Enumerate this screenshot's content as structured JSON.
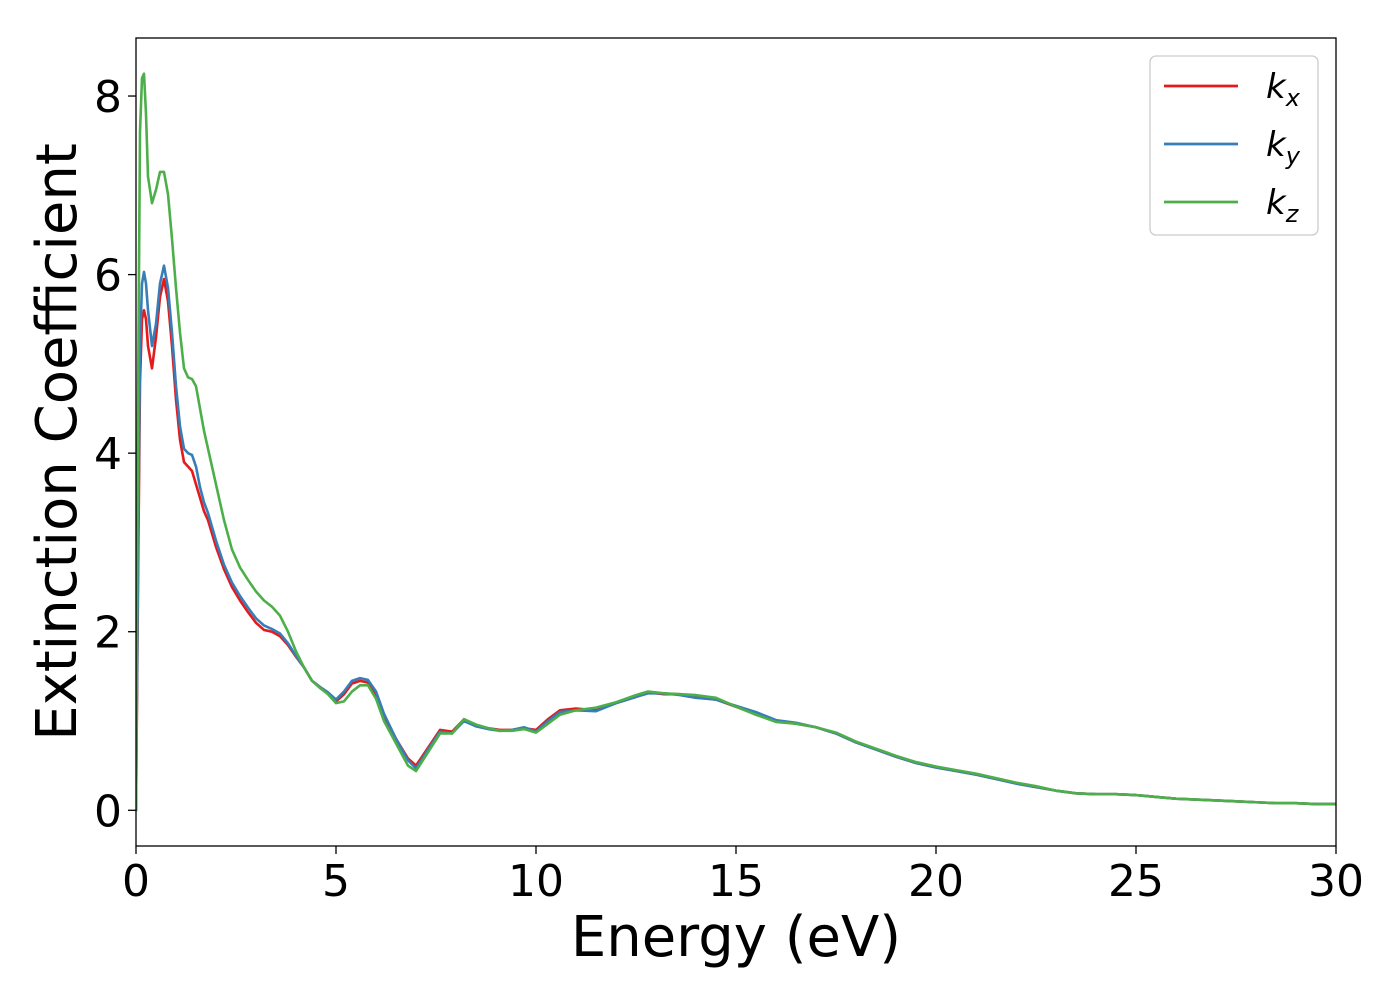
{
  "chart_data": {
    "type": "line",
    "title": "",
    "xlabel": "Energy (eV)",
    "ylabel": "Extinction Coefficient",
    "xlim": [
      0,
      30
    ],
    "ylim": [
      -0.4,
      8.65
    ],
    "xticks": [
      0,
      5,
      10,
      15,
      20,
      25,
      30
    ],
    "yticks": [
      0,
      2,
      4,
      6,
      8
    ],
    "grid": false,
    "legend_position": "top-right",
    "colors": {
      "kx": "#e41a1c",
      "ky": "#377eb8",
      "kz": "#4daf4a"
    },
    "series": [
      {
        "name": "k_x",
        "symbol": "k",
        "subscript": "x",
        "color": "#e41a1c",
        "x": [
          0,
          0.05,
          0.1,
          0.15,
          0.2,
          0.25,
          0.3,
          0.4,
          0.5,
          0.6,
          0.7,
          0.8,
          0.9,
          1.0,
          1.1,
          1.2,
          1.3,
          1.4,
          1.5,
          1.6,
          1.7,
          1.8,
          2.0,
          2.2,
          2.4,
          2.6,
          2.8,
          3.0,
          3.2,
          3.4,
          3.6,
          3.8,
          4.0,
          4.2,
          4.4,
          4.6,
          4.8,
          5.0,
          5.2,
          5.4,
          5.6,
          5.8,
          6.0,
          6.2,
          6.5,
          6.8,
          7.0,
          7.3,
          7.6,
          7.9,
          8.2,
          8.5,
          8.8,
          9.1,
          9.4,
          9.7,
          10.0,
          10.3,
          10.6,
          11.0,
          11.5,
          12.0,
          12.5,
          12.8,
          13.2,
          13.6,
          14.0,
          14.5,
          15.0,
          15.5,
          16.0,
          16.5,
          17.0,
          17.5,
          18.0,
          18.5,
          19.0,
          19.5,
          20.0,
          20.5,
          21.0,
          21.5,
          22.0,
          22.5,
          23.0,
          23.5,
          24.0,
          24.5,
          25.0,
          25.5,
          26.0,
          26.5,
          27.0,
          27.5,
          28.0,
          28.5,
          29.0,
          29.5,
          30.0
        ],
        "y": [
          0,
          2.5,
          4.8,
          5.5,
          5.6,
          5.5,
          5.2,
          4.95,
          5.3,
          5.75,
          5.95,
          5.7,
          5.2,
          4.6,
          4.15,
          3.9,
          3.85,
          3.8,
          3.65,
          3.5,
          3.35,
          3.25,
          2.95,
          2.7,
          2.5,
          2.35,
          2.22,
          2.1,
          2.02,
          2.0,
          1.95,
          1.85,
          1.72,
          1.6,
          1.45,
          1.38,
          1.32,
          1.22,
          1.3,
          1.42,
          1.45,
          1.43,
          1.3,
          1.05,
          0.8,
          0.58,
          0.5,
          0.7,
          0.9,
          0.88,
          1.02,
          0.95,
          0.92,
          0.9,
          0.9,
          0.92,
          0.9,
          1.02,
          1.12,
          1.14,
          1.12,
          1.2,
          1.27,
          1.32,
          1.3,
          1.3,
          1.27,
          1.24,
          1.16,
          1.08,
          1.0,
          0.97,
          0.93,
          0.86,
          0.76,
          0.68,
          0.6,
          0.53,
          0.48,
          0.44,
          0.4,
          0.35,
          0.3,
          0.26,
          0.22,
          0.19,
          0.18,
          0.18,
          0.17,
          0.15,
          0.13,
          0.12,
          0.11,
          0.1,
          0.09,
          0.08,
          0.08,
          0.07,
          0.07
        ]
      },
      {
        "name": "k_y",
        "symbol": "k",
        "subscript": "y",
        "color": "#377eb8",
        "x": [
          0,
          0.05,
          0.1,
          0.15,
          0.2,
          0.25,
          0.3,
          0.4,
          0.5,
          0.6,
          0.7,
          0.8,
          0.9,
          1.0,
          1.1,
          1.2,
          1.3,
          1.4,
          1.5,
          1.6,
          1.7,
          1.8,
          2.0,
          2.2,
          2.4,
          2.6,
          2.8,
          3.0,
          3.2,
          3.4,
          3.6,
          3.8,
          4.0,
          4.2,
          4.4,
          4.6,
          4.8,
          5.0,
          5.2,
          5.4,
          5.6,
          5.8,
          6.0,
          6.2,
          6.5,
          6.8,
          7.0,
          7.3,
          7.6,
          7.9,
          8.2,
          8.5,
          8.8,
          9.1,
          9.4,
          9.7,
          10.0,
          10.3,
          10.6,
          11.0,
          11.5,
          12.0,
          12.5,
          12.8,
          13.2,
          13.6,
          14.0,
          14.5,
          15.0,
          15.5,
          16.0,
          16.5,
          17.0,
          17.5,
          18.0,
          18.5,
          19.0,
          19.5,
          20.0,
          20.5,
          21.0,
          21.5,
          22.0,
          22.5,
          23.0,
          23.5,
          24.0,
          24.5,
          25.0,
          25.5,
          26.0,
          26.5,
          27.0,
          27.5,
          28.0,
          28.5,
          29.0,
          29.5,
          30.0
        ],
        "y": [
          0,
          2.8,
          5.2,
          5.9,
          6.03,
          5.9,
          5.6,
          5.2,
          5.45,
          5.9,
          6.1,
          5.85,
          5.35,
          4.75,
          4.3,
          4.05,
          4.0,
          3.98,
          3.85,
          3.62,
          3.45,
          3.33,
          3.02,
          2.75,
          2.55,
          2.4,
          2.27,
          2.15,
          2.07,
          2.03,
          1.98,
          1.87,
          1.73,
          1.6,
          1.45,
          1.38,
          1.32,
          1.24,
          1.33,
          1.45,
          1.48,
          1.46,
          1.33,
          1.08,
          0.8,
          0.56,
          0.47,
          0.68,
          0.88,
          0.86,
          1.0,
          0.94,
          0.91,
          0.89,
          0.9,
          0.93,
          0.88,
          1.0,
          1.1,
          1.12,
          1.11,
          1.2,
          1.27,
          1.31,
          1.31,
          1.29,
          1.26,
          1.24,
          1.17,
          1.1,
          1.01,
          0.98,
          0.93,
          0.86,
          0.76,
          0.68,
          0.6,
          0.53,
          0.48,
          0.44,
          0.4,
          0.35,
          0.3,
          0.26,
          0.22,
          0.19,
          0.18,
          0.18,
          0.17,
          0.15,
          0.13,
          0.12,
          0.11,
          0.1,
          0.09,
          0.08,
          0.08,
          0.07,
          0.07
        ]
      },
      {
        "name": "k_z",
        "symbol": "k",
        "subscript": "z",
        "color": "#4daf4a",
        "x": [
          0,
          0.05,
          0.1,
          0.15,
          0.2,
          0.25,
          0.3,
          0.4,
          0.5,
          0.6,
          0.7,
          0.8,
          0.9,
          1.0,
          1.1,
          1.2,
          1.3,
          1.4,
          1.5,
          1.6,
          1.7,
          1.8,
          2.0,
          2.2,
          2.4,
          2.6,
          2.8,
          3.0,
          3.2,
          3.4,
          3.6,
          3.8,
          4.0,
          4.2,
          4.4,
          4.6,
          4.8,
          5.0,
          5.2,
          5.4,
          5.6,
          5.8,
          6.0,
          6.2,
          6.5,
          6.8,
          7.0,
          7.3,
          7.6,
          7.9,
          8.2,
          8.5,
          8.8,
          9.1,
          9.4,
          9.7,
          10.0,
          10.3,
          10.6,
          11.0,
          11.5,
          12.0,
          12.5,
          12.8,
          13.2,
          13.6,
          14.0,
          14.5,
          15.0,
          15.5,
          16.0,
          16.5,
          17.0,
          17.5,
          18.0,
          18.5,
          19.0,
          19.5,
          20.0,
          20.5,
          21.0,
          21.5,
          22.0,
          22.5,
          23.0,
          23.5,
          24.0,
          24.5,
          25.0,
          25.5,
          26.0,
          26.5,
          27.0,
          27.5,
          28.0,
          28.5,
          29.0,
          29.5,
          30.0
        ],
        "y": [
          0,
          4.5,
          7.6,
          8.2,
          8.25,
          7.8,
          7.1,
          6.8,
          6.95,
          7.15,
          7.15,
          6.9,
          6.4,
          5.85,
          5.35,
          4.95,
          4.85,
          4.83,
          4.75,
          4.5,
          4.25,
          4.05,
          3.65,
          3.25,
          2.92,
          2.72,
          2.58,
          2.45,
          2.35,
          2.28,
          2.18,
          2.0,
          1.78,
          1.6,
          1.45,
          1.37,
          1.3,
          1.2,
          1.22,
          1.33,
          1.4,
          1.4,
          1.25,
          1.0,
          0.75,
          0.5,
          0.44,
          0.65,
          0.86,
          0.86,
          1.02,
          0.96,
          0.92,
          0.89,
          0.89,
          0.91,
          0.87,
          0.97,
          1.07,
          1.12,
          1.15,
          1.21,
          1.29,
          1.33,
          1.31,
          1.3,
          1.29,
          1.26,
          1.16,
          1.07,
          0.99,
          0.97,
          0.93,
          0.87,
          0.77,
          0.69,
          0.61,
          0.54,
          0.49,
          0.45,
          0.41,
          0.36,
          0.31,
          0.27,
          0.22,
          0.19,
          0.18,
          0.18,
          0.17,
          0.15,
          0.13,
          0.12,
          0.11,
          0.1,
          0.09,
          0.08,
          0.08,
          0.07,
          0.07
        ]
      }
    ]
  }
}
